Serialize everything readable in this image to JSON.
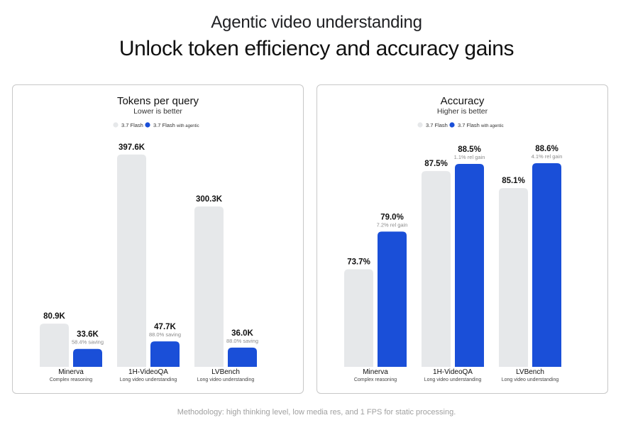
{
  "header": {
    "subtitle": "Agentic video understanding",
    "title": "Unlock token efficiency and accuracy gains"
  },
  "footer": {
    "methodology": "Methodology: high thinking level, low media res, and 1 FPS for static processing."
  },
  "colors": {
    "baseline": "#e6e8ea",
    "agentic": "#1a4fd8",
    "text": "#1f1f1f",
    "muted": "#8a8a8a"
  },
  "chart_data": [
    {
      "type": "bar",
      "title": "Tokens per query",
      "subtitle": "Lower is better",
      "categories": [
        "Minerva",
        "1H-VideoQA",
        "LVBench"
      ],
      "category_sublabels": [
        "Complex reasoning",
        "Long video understanding",
        "Long video understanding"
      ],
      "series": [
        {
          "name": "3.7 Flash",
          "values": [
            80.9,
            397.6,
            300.3
          ],
          "labels": [
            "80.9K",
            "397.6K",
            "300.3K"
          ]
        },
        {
          "name": "3.7 Flash with agentic",
          "values": [
            33.6,
            47.7,
            36.0
          ],
          "labels": [
            "33.6K",
            "47.7K",
            "36.0K"
          ],
          "notes": [
            "58.4% saving",
            "88.0% saving",
            "88.0% saving"
          ]
        }
      ],
      "ylim": [
        0,
        400
      ],
      "legend": "top-center",
      "grid": false
    },
    {
      "type": "bar",
      "title": "Accuracy",
      "subtitle": "Higher is better",
      "categories": [
        "Minerva",
        "1H-VideoQA",
        "LVBench"
      ],
      "category_sublabels": [
        "Complex reasoning",
        "Long video understanding",
        "Long video understanding"
      ],
      "series": [
        {
          "name": "3.7 Flash",
          "values": [
            73.7,
            87.5,
            85.1
          ],
          "labels": [
            "73.7%",
            "87.5%",
            "85.1%"
          ]
        },
        {
          "name": "3.7 Flash with agentic",
          "values": [
            79.0,
            88.5,
            88.6
          ],
          "labels": [
            "79.0%",
            "88.5%",
            "88.6%"
          ],
          "notes": [
            "7.2% rel gain",
            "1.1% rel gain",
            "4.1% rel gain"
          ]
        }
      ],
      "ylim": [
        60,
        90
      ],
      "legend": "top-center",
      "grid": false
    }
  ]
}
